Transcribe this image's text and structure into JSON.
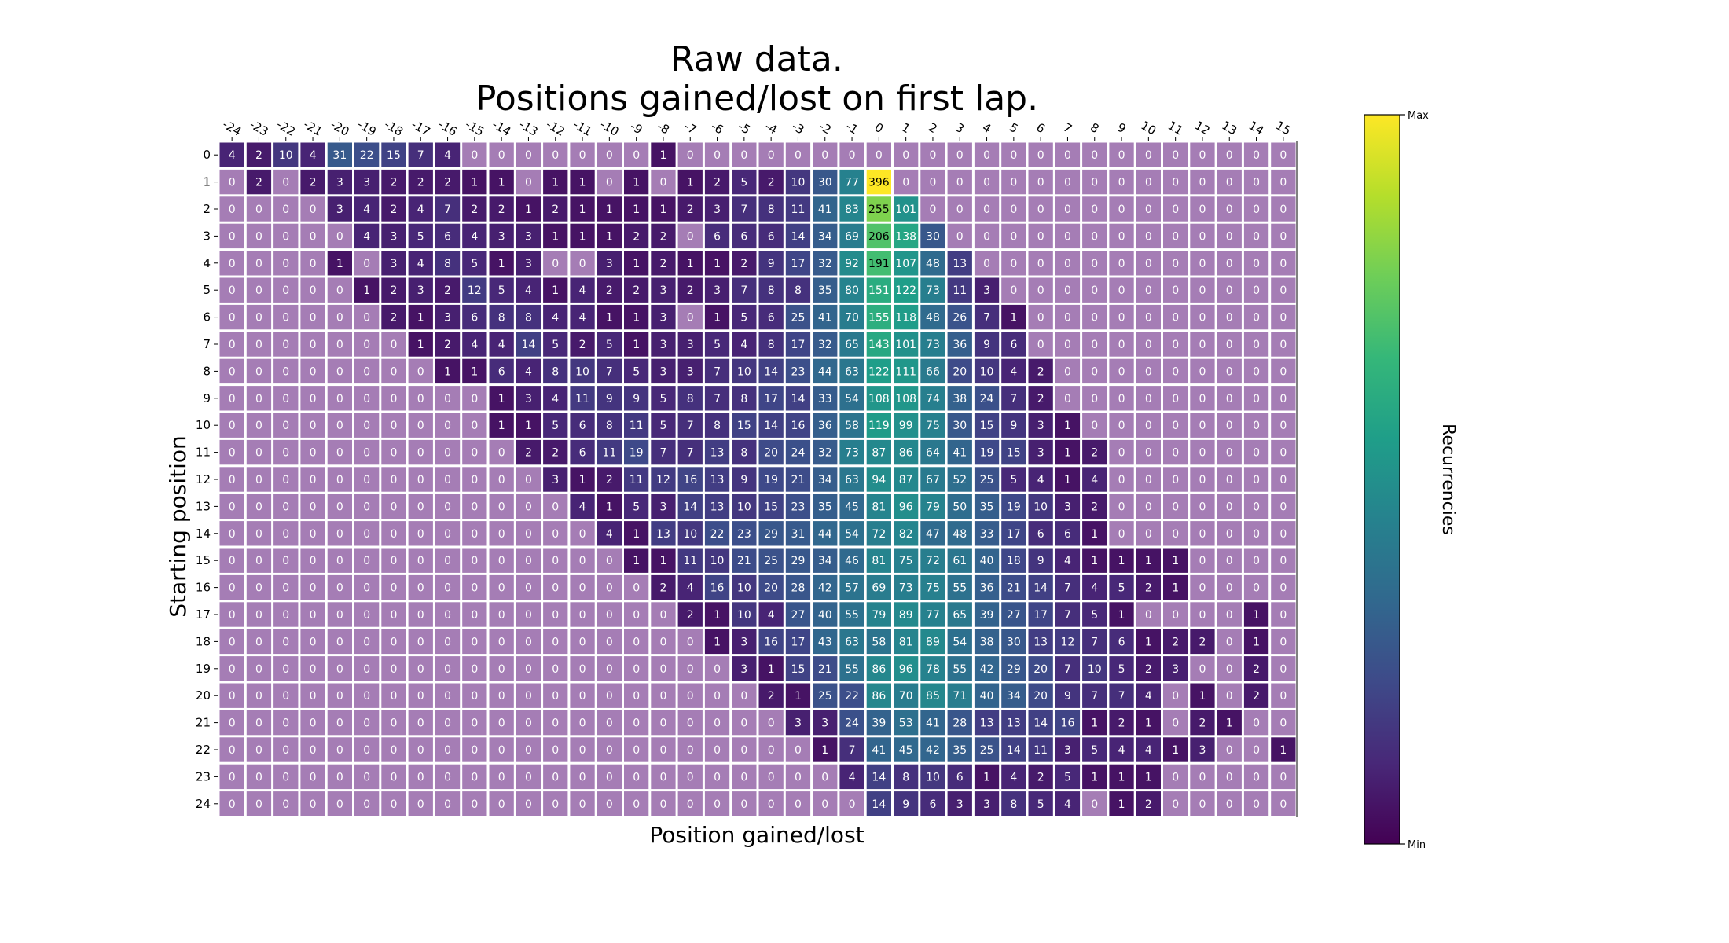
{
  "chart_data": {
    "type": "heatmap",
    "title": [
      "Raw data.",
      "Positions gained/lost on first lap."
    ],
    "xlabel": "Position gained/lost",
    "ylabel": "Starting position",
    "x_categories": [
      -24,
      -23,
      -22,
      -21,
      -20,
      -19,
      -18,
      -17,
      -16,
      -15,
      -14,
      -13,
      -12,
      -11,
      -10,
      -9,
      -8,
      -7,
      -6,
      -5,
      -4,
      -3,
      -2,
      -1,
      0,
      1,
      2,
      3,
      4,
      5,
      6,
      7,
      8,
      9,
      10,
      11,
      12,
      13,
      14,
      15
    ],
    "y_categories": [
      0,
      1,
      2,
      3,
      4,
      5,
      6,
      7,
      8,
      9,
      10,
      11,
      12,
      13,
      14,
      15,
      16,
      17,
      18,
      19,
      20,
      21,
      22,
      23,
      24
    ],
    "values": [
      [
        4,
        2,
        10,
        4,
        31,
        22,
        15,
        7,
        4,
        0,
        0,
        0,
        0,
        0,
        0,
        0,
        1,
        0,
        0,
        0,
        0,
        0,
        0,
        0,
        0,
        0,
        0,
        0,
        0,
        0,
        0,
        0,
        0,
        0,
        0,
        0,
        0,
        0,
        0,
        0
      ],
      [
        0,
        2,
        0,
        2,
        3,
        3,
        2,
        2,
        2,
        1,
        1,
        0,
        1,
        1,
        0,
        1,
        0,
        1,
        2,
        5,
        2,
        10,
        30,
        77,
        396,
        0,
        0,
        0,
        0,
        0,
        0,
        0,
        0,
        0,
        0,
        0,
        0,
        0,
        0,
        0
      ],
      [
        0,
        0,
        0,
        0,
        3,
        4,
        2,
        4,
        7,
        2,
        2,
        1,
        2,
        1,
        1,
        1,
        1,
        2,
        3,
        7,
        8,
        11,
        41,
        83,
        255,
        101,
        0,
        0,
        0,
        0,
        0,
        0,
        0,
        0,
        0,
        0,
        0,
        0,
        0,
        0
      ],
      [
        0,
        0,
        0,
        0,
        0,
        4,
        3,
        5,
        6,
        4,
        3,
        3,
        1,
        1,
        1,
        2,
        2,
        0,
        6,
        6,
        6,
        14,
        34,
        69,
        206,
        138,
        30,
        0,
        0,
        0,
        0,
        0,
        0,
        0,
        0,
        0,
        0,
        0,
        0,
        0
      ],
      [
        0,
        0,
        0,
        0,
        1,
        0,
        3,
        4,
        8,
        5,
        1,
        3,
        0,
        0,
        3,
        1,
        2,
        1,
        1,
        2,
        9,
        17,
        32,
        92,
        191,
        107,
        48,
        13,
        0,
        0,
        0,
        0,
        0,
        0,
        0,
        0,
        0,
        0,
        0,
        0
      ],
      [
        0,
        0,
        0,
        0,
        0,
        1,
        2,
        3,
        2,
        12,
        5,
        4,
        1,
        4,
        2,
        2,
        3,
        2,
        3,
        7,
        8,
        8,
        35,
        80,
        151,
        122,
        73,
        11,
        3,
        0,
        0,
        0,
        0,
        0,
        0,
        0,
        0,
        0,
        0,
        0
      ],
      [
        0,
        0,
        0,
        0,
        0,
        0,
        2,
        1,
        3,
        6,
        8,
        8,
        4,
        4,
        1,
        1,
        3,
        0,
        1,
        5,
        6,
        25,
        41,
        70,
        155,
        118,
        48,
        26,
        7,
        1,
        0,
        0,
        0,
        0,
        0,
        0,
        0,
        0,
        0,
        0
      ],
      [
        0,
        0,
        0,
        0,
        0,
        0,
        0,
        1,
        2,
        4,
        4,
        14,
        5,
        2,
        5,
        1,
        3,
        3,
        5,
        4,
        8,
        17,
        32,
        65,
        143,
        101,
        73,
        36,
        9,
        6,
        0,
        0,
        0,
        0,
        0,
        0,
        0,
        0,
        0,
        0
      ],
      [
        0,
        0,
        0,
        0,
        0,
        0,
        0,
        0,
        1,
        1,
        6,
        4,
        8,
        10,
        7,
        5,
        3,
        3,
        7,
        10,
        14,
        23,
        44,
        63,
        122,
        111,
        66,
        20,
        10,
        4,
        2,
        0,
        0,
        0,
        0,
        0,
        0,
        0,
        0,
        0
      ],
      [
        0,
        0,
        0,
        0,
        0,
        0,
        0,
        0,
        0,
        0,
        1,
        3,
        4,
        11,
        9,
        9,
        5,
        8,
        7,
        8,
        17,
        14,
        33,
        54,
        108,
        108,
        74,
        38,
        24,
        7,
        2,
        0,
        0,
        0,
        0,
        0,
        0,
        0,
        0,
        0
      ],
      [
        0,
        0,
        0,
        0,
        0,
        0,
        0,
        0,
        0,
        0,
        1,
        1,
        5,
        6,
        8,
        11,
        5,
        7,
        8,
        15,
        14,
        16,
        36,
        58,
        119,
        99,
        75,
        30,
        15,
        9,
        3,
        1,
        0,
        0,
        0,
        0,
        0,
        0,
        0,
        0
      ],
      [
        0,
        0,
        0,
        0,
        0,
        0,
        0,
        0,
        0,
        0,
        0,
        2,
        2,
        6,
        11,
        19,
        7,
        7,
        13,
        8,
        20,
        24,
        32,
        73,
        87,
        86,
        64,
        41,
        19,
        15,
        3,
        1,
        2,
        0,
        0,
        0,
        0,
        0,
        0,
        0
      ],
      [
        0,
        0,
        0,
        0,
        0,
        0,
        0,
        0,
        0,
        0,
        0,
        0,
        3,
        1,
        2,
        11,
        12,
        16,
        13,
        9,
        19,
        21,
        34,
        63,
        94,
        87,
        67,
        52,
        25,
        5,
        4,
        1,
        4,
        0,
        0,
        0,
        0,
        0,
        0,
        0
      ],
      [
        0,
        0,
        0,
        0,
        0,
        0,
        0,
        0,
        0,
        0,
        0,
        0,
        0,
        4,
        1,
        5,
        3,
        14,
        13,
        10,
        15,
        23,
        35,
        45,
        81,
        96,
        79,
        50,
        35,
        19,
        10,
        3,
        2,
        0,
        0,
        0,
        0,
        0,
        0,
        0
      ],
      [
        0,
        0,
        0,
        0,
        0,
        0,
        0,
        0,
        0,
        0,
        0,
        0,
        0,
        0,
        4,
        1,
        13,
        10,
        22,
        23,
        29,
        31,
        44,
        54,
        72,
        82,
        47,
        48,
        33,
        17,
        6,
        6,
        1,
        0,
        0,
        0,
        0,
        0,
        0,
        0
      ],
      [
        0,
        0,
        0,
        0,
        0,
        0,
        0,
        0,
        0,
        0,
        0,
        0,
        0,
        0,
        0,
        1,
        1,
        11,
        10,
        21,
        25,
        29,
        34,
        46,
        81,
        75,
        72,
        61,
        40,
        18,
        9,
        4,
        1,
        1,
        1,
        1,
        0,
        0,
        0,
        0
      ],
      [
        0,
        0,
        0,
        0,
        0,
        0,
        0,
        0,
        0,
        0,
        0,
        0,
        0,
        0,
        0,
        0,
        2,
        4,
        16,
        10,
        20,
        28,
        42,
        57,
        69,
        73,
        75,
        55,
        36,
        21,
        14,
        7,
        4,
        5,
        2,
        1,
        0,
        0,
        0,
        0
      ],
      [
        0,
        0,
        0,
        0,
        0,
        0,
        0,
        0,
        0,
        0,
        0,
        0,
        0,
        0,
        0,
        0,
        0,
        2,
        1,
        10,
        4,
        27,
        40,
        55,
        79,
        89,
        77,
        65,
        39,
        27,
        17,
        7,
        5,
        1,
        0,
        0,
        0,
        0,
        1,
        0
      ],
      [
        0,
        0,
        0,
        0,
        0,
        0,
        0,
        0,
        0,
        0,
        0,
        0,
        0,
        0,
        0,
        0,
        0,
        0,
        1,
        3,
        16,
        17,
        43,
        63,
        58,
        81,
        89,
        54,
        38,
        30,
        13,
        12,
        7,
        6,
        1,
        2,
        2,
        0,
        1,
        0
      ],
      [
        0,
        0,
        0,
        0,
        0,
        0,
        0,
        0,
        0,
        0,
        0,
        0,
        0,
        0,
        0,
        0,
        0,
        0,
        0,
        3,
        1,
        15,
        21,
        55,
        86,
        96,
        78,
        55,
        42,
        29,
        20,
        7,
        10,
        5,
        2,
        3,
        0,
        0,
        2,
        0
      ],
      [
        0,
        0,
        0,
        0,
        0,
        0,
        0,
        0,
        0,
        0,
        0,
        0,
        0,
        0,
        0,
        0,
        0,
        0,
        0,
        0,
        2,
        1,
        25,
        22,
        86,
        70,
        85,
        71,
        40,
        34,
        20,
        9,
        7,
        7,
        4,
        0,
        1,
        0,
        2,
        0
      ],
      [
        0,
        0,
        0,
        0,
        0,
        0,
        0,
        0,
        0,
        0,
        0,
        0,
        0,
        0,
        0,
        0,
        0,
        0,
        0,
        0,
        0,
        3,
        3,
        24,
        39,
        53,
        41,
        28,
        13,
        13,
        14,
        16,
        1,
        2,
        1,
        0,
        2,
        1,
        0,
        0
      ],
      [
        0,
        0,
        0,
        0,
        0,
        0,
        0,
        0,
        0,
        0,
        0,
        0,
        0,
        0,
        0,
        0,
        0,
        0,
        0,
        0,
        0,
        0,
        1,
        7,
        41,
        45,
        42,
        35,
        25,
        14,
        11,
        3,
        5,
        4,
        4,
        1,
        3,
        0,
        0,
        1
      ],
      [
        0,
        0,
        0,
        0,
        0,
        0,
        0,
        0,
        0,
        0,
        0,
        0,
        0,
        0,
        0,
        0,
        0,
        0,
        0,
        0,
        0,
        0,
        0,
        4,
        14,
        8,
        10,
        6,
        1,
        4,
        2,
        5,
        1,
        1,
        1,
        0,
        0,
        0,
        0,
        0
      ],
      [
        0,
        0,
        0,
        0,
        0,
        0,
        0,
        0,
        0,
        0,
        0,
        0,
        0,
        0,
        0,
        0,
        0,
        0,
        0,
        0,
        0,
        0,
        0,
        0,
        14,
        9,
        6,
        3,
        3,
        8,
        5,
        4,
        0,
        1,
        2,
        0,
        0,
        0,
        0,
        0
      ]
    ],
    "colormap": "viridis",
    "zero_cell_color": "#a57db5",
    "colorbar": {
      "label": "Recurrencies",
      "max_label": "Max",
      "min_label": "Min",
      "colors": [
        "#440154",
        "#482878",
        "#3e4a89",
        "#31688e",
        "#26828e",
        "#1f9e89",
        "#35b779",
        "#6ece58",
        "#b5de2b",
        "#fde725"
      ]
    },
    "grid": false
  }
}
